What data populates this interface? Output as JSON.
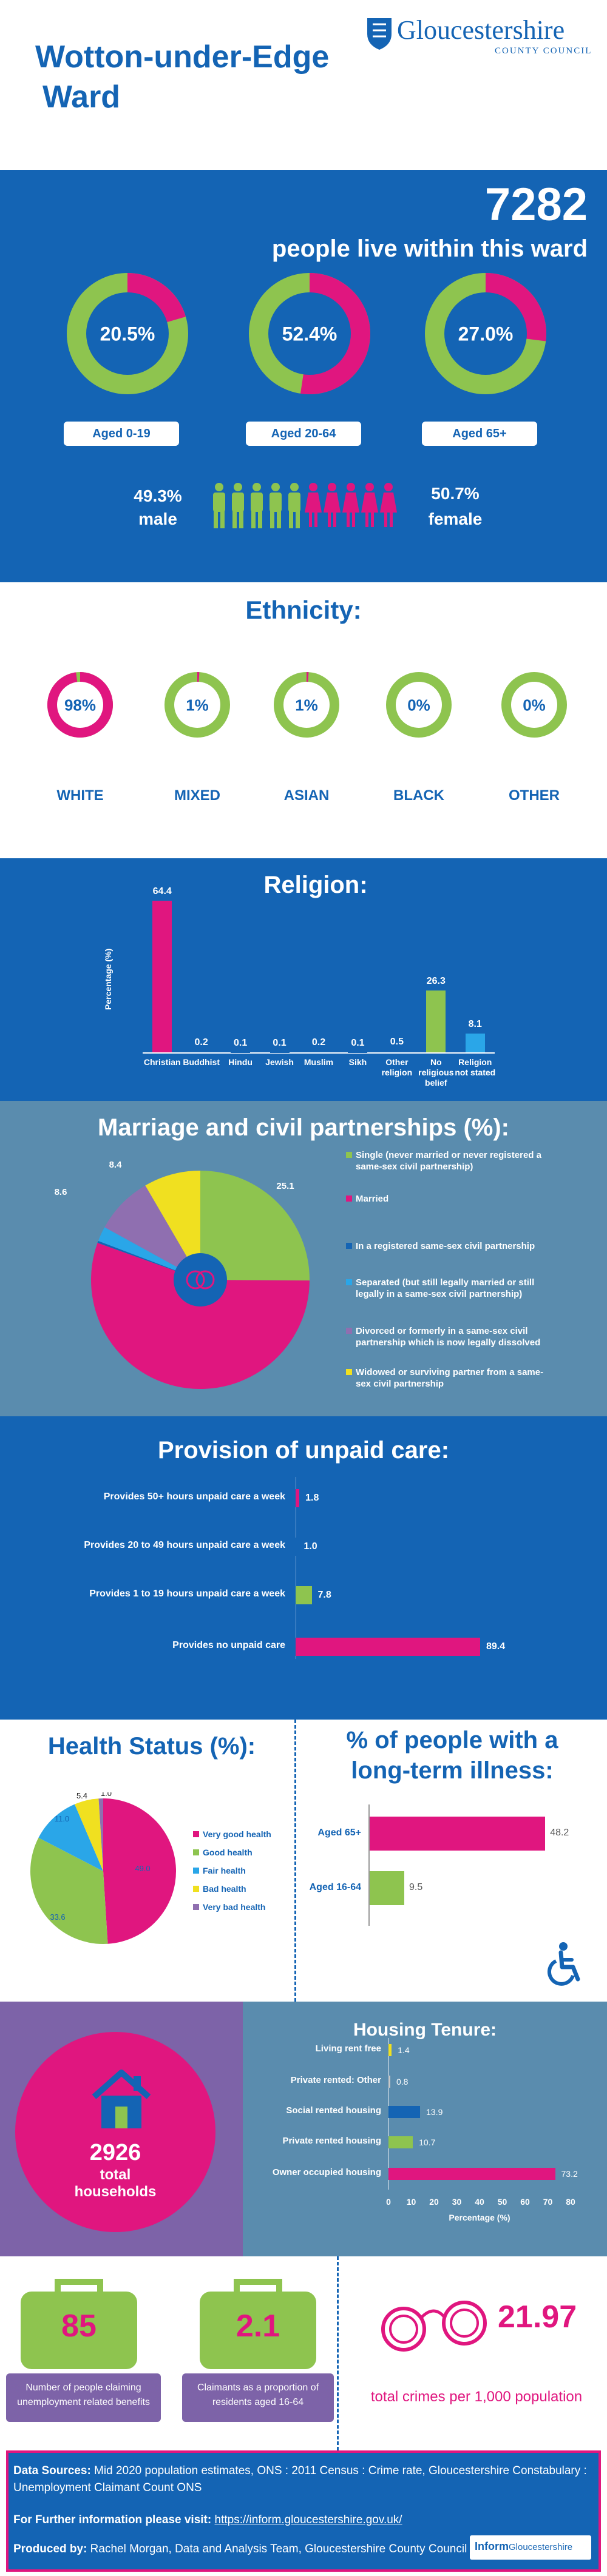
{
  "header": {
    "title_line1": "Wotton-under-Edge",
    "title_line2": "Ward",
    "logo_main": "Gloucestershire",
    "logo_sub": "COUNTY COUNCIL"
  },
  "population": {
    "total": "7282",
    "subtitle": "people live within this ward",
    "donuts": [
      {
        "pct": "20.5%",
        "label": "Aged 0-19",
        "fraction": 0.205
      },
      {
        "pct": "52.4%",
        "label": "Aged 20-64",
        "fraction": 0.524
      },
      {
        "pct": "27.0%",
        "label": "Aged 65+",
        "fraction": 0.27
      }
    ],
    "male_pct": "49.3%",
    "male_label": "male",
    "female_pct": "50.7%",
    "female_label": "female",
    "colors": {
      "male": "#8ec44f",
      "female": "#e0167f",
      "bg": "#1464b4"
    }
  },
  "ethnicity": {
    "title": "Ethnicity:",
    "items": [
      {
        "pct": "98%",
        "label": "WHITE",
        "fraction": 0.98
      },
      {
        "pct": "1%",
        "label": "MIXED",
        "fraction": 0.01
      },
      {
        "pct": "1%",
        "label": "ASIAN",
        "fraction": 0.01
      },
      {
        "pct": "0%",
        "label": "BLACK",
        "fraction": 0.0
      },
      {
        "pct": "0%",
        "label": "OTHER",
        "fraction": 0.0
      }
    ]
  },
  "religion": {
    "title": "Religion:",
    "ylabel": "Percentage (%)",
    "labels": [
      "Christian",
      "Buddhist",
      "Hindu",
      "Jewish",
      "Muslim",
      "Sikh",
      "Other religion",
      "No religious belief",
      "Religion not stated"
    ],
    "values_text": [
      "64.4",
      "0.2",
      "0.1",
      "0.1",
      "0.2",
      "0.1",
      "0.5",
      "26.3",
      "8.1"
    ]
  },
  "marriage": {
    "title": "Marriage and civil partnerships (%):",
    "slice_values_text": [
      "25.1",
      "55.4",
      "0.3",
      "2.2",
      "8.6",
      "8.4"
    ],
    "legend": [
      "Single (never married or never registered a same-sex civil partnership)",
      "Married",
      "In a registered same-sex civil partnership",
      "Separated  (but still legally married or still legally in a same-sex civil partnership)",
      "Divorced or formerly in a same-sex civil partnership which is now legally dissolved",
      "Widowed or surviving partner from a same-sex civil partnership"
    ]
  },
  "unpaid_care": {
    "title": "Provision of unpaid care:",
    "rows": [
      {
        "label": "Provides 50+ hours unpaid care a week",
        "value_text": "1.8"
      },
      {
        "label": "Provides 20 to 49 hours unpaid care a week",
        "value_text": "1.0"
      },
      {
        "label": "Provides 1 to 19 hours unpaid care a week",
        "value_text": "7.8"
      },
      {
        "label": "Provides no unpaid care",
        "value_text": "89.4"
      }
    ]
  },
  "health": {
    "title": "Health Status (%):",
    "slice_values_text": [
      "49.0",
      "33.6",
      "11.0",
      "5.4",
      "1.0"
    ],
    "legend": [
      "Very good health",
      "Good health",
      "Fair health",
      "Bad health",
      "Very bad health"
    ]
  },
  "illness": {
    "title_line1": "% of people with a",
    "title_line2": "long-term illness:",
    "rows": [
      {
        "label": "Aged 65+",
        "value_text": "48.2"
      },
      {
        "label": "Aged 16-64",
        "value_text": "9.5"
      }
    ]
  },
  "housing": {
    "households": "2926",
    "households_label1": "total",
    "households_label2": "households",
    "title": "Housing Tenure:",
    "rows": [
      {
        "label": "Living rent free",
        "value_text": "1.4"
      },
      {
        "label": "Private rented: Other",
        "value_text": "0.8"
      },
      {
        "label": "Social rented housing",
        "value_text": "13.9"
      },
      {
        "label": "Private rented housing",
        "value_text": "10.7"
      },
      {
        "label": "Owner occupied housing",
        "value_text": "73.2"
      }
    ],
    "ticks": [
      "0",
      "10",
      "20",
      "30",
      "40",
      "50",
      "60",
      "70",
      "80"
    ],
    "xlabel": "Percentage (%)"
  },
  "benefits": {
    "claimants": "85",
    "claimants_label": "Number of people claiming unemployment related benefits",
    "proportion": "2.1",
    "proportion_label": "Claimants as a proportion of residents aged 16-64",
    "crime_rate": "21.97",
    "crime_label": "total crimes per 1,000 population"
  },
  "footer": {
    "sources_bold": "Data Sources:",
    "sources_text": " Mid 2020 population estimates, ONS : 2011 Census : Crime rate, Gloucestershire Constabulary : Unemployment Claimant Count ONS",
    "info_bold": "For Further information please visit:",
    "info_link": "https://inform.gloucestershire.gov.uk/",
    "produced_bold": "Produced by:",
    "produced_text": " Rachel Morgan, Data and Analysis Team, Gloucestershire County Council",
    "logo_a": "Inform",
    "logo_b": "Gloucestershire"
  },
  "chart_data": [
    {
      "type": "pie",
      "title": "",
      "categories": [
        "Aged 0-19",
        "Aged 20-64",
        "Aged 65+"
      ],
      "values": [
        20.5,
        52.4,
        27.0
      ]
    },
    {
      "type": "pie",
      "title": "Ethnicity:",
      "categories": [
        "WHITE",
        "MIXED",
        "ASIAN",
        "BLACK",
        "OTHER"
      ],
      "values": [
        98,
        1,
        1,
        0,
        0
      ]
    },
    {
      "type": "bar",
      "title": "Religion:",
      "ylabel": "Percentage (%)",
      "categories": [
        "Christian",
        "Buddhist",
        "Hindu",
        "Jewish",
        "Muslim",
        "Sikh",
        "Other religion",
        "No religious belief",
        "Religion not stated"
      ],
      "values": [
        64.4,
        0.2,
        0.1,
        0.1,
        0.2,
        0.1,
        0.5,
        26.3,
        8.1
      ]
    },
    {
      "type": "pie",
      "title": "Marriage and civil partnerships (%):",
      "categories": [
        "Single",
        "Married",
        "In a registered same-sex civil partnership",
        "Separated",
        "Divorced",
        "Widowed"
      ],
      "values": [
        25.1,
        55.4,
        0.3,
        2.2,
        8.6,
        8.4
      ]
    },
    {
      "type": "bar",
      "title": "Provision of unpaid care:",
      "categories": [
        "Provides 50+ hours unpaid care a week",
        "Provides 20 to 49 hours unpaid care a week",
        "Provides 1 to 19 hours unpaid care a week",
        "Provides no unpaid care"
      ],
      "values": [
        1.8,
        1.0,
        7.8,
        89.4
      ]
    },
    {
      "type": "pie",
      "title": "Health Status (%):",
      "categories": [
        "Very good health",
        "Good health",
        "Fair health",
        "Bad health",
        "Very bad health"
      ],
      "values": [
        49.0,
        33.6,
        11.0,
        5.4,
        1.0
      ]
    },
    {
      "type": "bar",
      "title": "% of people with a long-term illness:",
      "categories": [
        "Aged 65+",
        "Aged 16-64"
      ],
      "values": [
        48.2,
        9.5
      ]
    },
    {
      "type": "bar",
      "title": "Housing Tenure:",
      "xlabel": "Percentage (%)",
      "categories": [
        "Living rent free",
        "Private rented: Other",
        "Social rented housing",
        "Private rented housing",
        "Owner occupied housing"
      ],
      "values": [
        1.4,
        0.8,
        13.9,
        10.7,
        73.2
      ],
      "xlim": [
        0,
        80
      ]
    }
  ]
}
